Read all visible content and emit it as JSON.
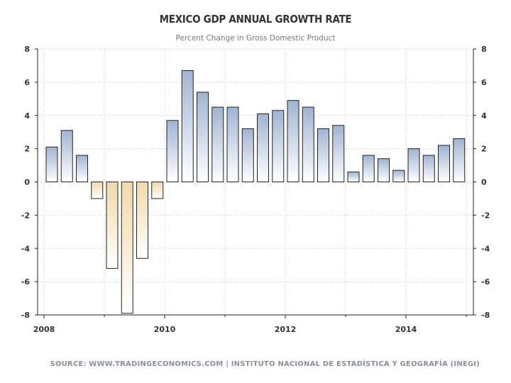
{
  "chart_data": {
    "type": "bar",
    "title": "MEXICO GDP ANNUAL GROWTH RATE",
    "subtitle": "Percent Change in Gross Domestic Product",
    "xlabel": "",
    "ylabel": "",
    "ylim": [
      -8,
      8
    ],
    "yticks": [
      8,
      6,
      4,
      2,
      0,
      -2,
      -4,
      -6,
      -8
    ],
    "xticks": [
      "2008",
      "2010",
      "2012",
      "2014"
    ],
    "grid": true,
    "categories": [
      "2008-Q1",
      "2008-Q2",
      "2008-Q3",
      "2008-Q4",
      "2009-Q1",
      "2009-Q2",
      "2009-Q3",
      "2009-Q4",
      "2010-Q1",
      "2010-Q2",
      "2010-Q3",
      "2010-Q4",
      "2011-Q1",
      "2011-Q2",
      "2011-Q3",
      "2011-Q4",
      "2012-Q1",
      "2012-Q2",
      "2012-Q3",
      "2012-Q4",
      "2013-Q1",
      "2013-Q2",
      "2013-Q3",
      "2013-Q4",
      "2014-Q1",
      "2014-Q2",
      "2014-Q3",
      "2014-Q4"
    ],
    "values": [
      2.1,
      3.1,
      1.6,
      -1.0,
      -5.2,
      -7.9,
      -4.6,
      -1.0,
      3.7,
      6.7,
      5.4,
      4.5,
      4.5,
      3.2,
      4.1,
      4.3,
      4.9,
      4.5,
      3.2,
      3.4,
      0.6,
      1.6,
      1.4,
      0.7,
      2.0,
      1.6,
      2.2,
      2.6
    ],
    "source": "SOURCE: WWW.TRADINGECONOMICS.COM | INSTITUTO NACIONAL DE ESTADÍSTICA Y GEOGRAFÍA (INEGI)"
  },
  "colors": {
    "positive_top": "#9fb4d2",
    "positive_bottom": "#ffffff",
    "negative_top": "#ffffff",
    "negative_bottom": "#f0d9a8",
    "bar_stroke": "#222222",
    "grid": "#c8c8c8",
    "axis": "#222222"
  }
}
